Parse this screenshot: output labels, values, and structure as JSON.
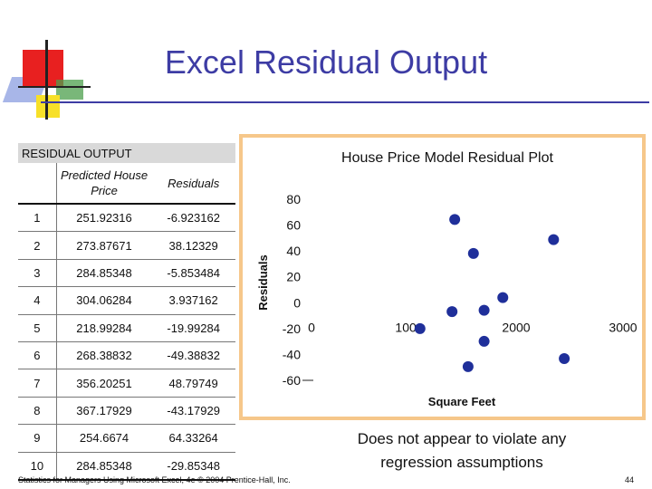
{
  "slide": {
    "title": "Excel Residual Output",
    "note": "Does not appear to violate any regression assumptions",
    "footer": "Statistics for Managers Using Microsoft Excel, 4e © 2004 Prentice-Hall, Inc.",
    "page_number": "44"
  },
  "table": {
    "caption": "RESIDUAL OUTPUT",
    "header_pred": "Predicted House Price",
    "header_res": "Residuals",
    "rows": [
      {
        "obs": "1",
        "pred": "251.92316",
        "res": "-6.923162"
      },
      {
        "obs": "2",
        "pred": "273.87671",
        "res": "38.12329"
      },
      {
        "obs": "3",
        "pred": "284.85348",
        "res": "-5.853484"
      },
      {
        "obs": "4",
        "pred": "304.06284",
        "res": "3.937162"
      },
      {
        "obs": "5",
        "pred": "218.99284",
        "res": "-19.99284"
      },
      {
        "obs": "6",
        "pred": "268.38832",
        "res": "-49.38832"
      },
      {
        "obs": "7",
        "pred": "356.20251",
        "res": "48.79749"
      },
      {
        "obs": "8",
        "pred": "367.17929",
        "res": "-43.17929"
      },
      {
        "obs": "9",
        "pred": "254.6674",
        "res": "64.33264"
      },
      {
        "obs": "10",
        "pred": "284.85348",
        "res": "-29.85348"
      }
    ]
  },
  "chart_data": {
    "type": "scatter",
    "title": "House Price Model Residual Plot",
    "xlabel": "Square Feet",
    "ylabel": "Residuals",
    "x_ticks": [
      "0",
      "1000",
      "2000",
      "3000"
    ],
    "y_ticks": [
      "80",
      "60",
      "40",
      "20",
      "0",
      "-20",
      "-40",
      "-60"
    ],
    "xlim": [
      0,
      3000
    ],
    "ylim": [
      -60,
      80
    ],
    "marker_color": "#1f2f9a",
    "x": [
      1400,
      1600,
      1700,
      1875,
      1100,
      1550,
      2350,
      2450,
      1425,
      1700
    ],
    "y": [
      -6.923162,
      38.12329,
      -5.853484,
      3.937162,
      -19.99284,
      -49.38832,
      48.79749,
      -43.17929,
      64.33264,
      -29.85348
    ]
  }
}
